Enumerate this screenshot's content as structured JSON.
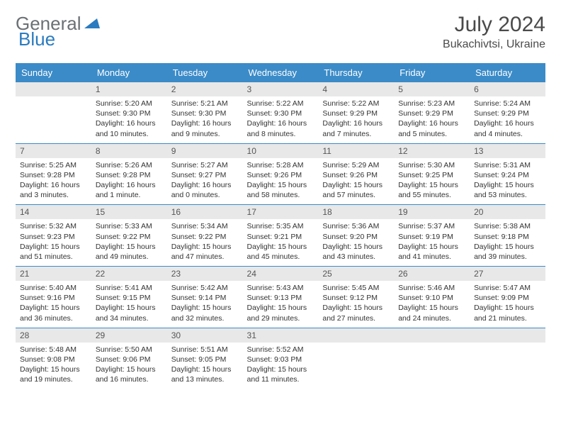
{
  "brand": {
    "part1": "General",
    "part2": "Blue"
  },
  "title": "July 2024",
  "location": "Bukachivtsi, Ukraine",
  "colors": {
    "header_bg": "#3b8bc8",
    "header_text": "#ffffff",
    "daynum_bg": "#e8e8e8",
    "border": "#3b8bc8",
    "text": "#333333",
    "logo_gray": "#6b7074",
    "logo_blue": "#2a7bbf"
  },
  "day_headers": [
    "Sunday",
    "Monday",
    "Tuesday",
    "Wednesday",
    "Thursday",
    "Friday",
    "Saturday"
  ],
  "weeks": [
    [
      {
        "num": "",
        "lines": []
      },
      {
        "num": "1",
        "lines": [
          "Sunrise: 5:20 AM",
          "Sunset: 9:30 PM",
          "Daylight: 16 hours",
          "and 10 minutes."
        ]
      },
      {
        "num": "2",
        "lines": [
          "Sunrise: 5:21 AM",
          "Sunset: 9:30 PM",
          "Daylight: 16 hours",
          "and 9 minutes."
        ]
      },
      {
        "num": "3",
        "lines": [
          "Sunrise: 5:22 AM",
          "Sunset: 9:30 PM",
          "Daylight: 16 hours",
          "and 8 minutes."
        ]
      },
      {
        "num": "4",
        "lines": [
          "Sunrise: 5:22 AM",
          "Sunset: 9:29 PM",
          "Daylight: 16 hours",
          "and 7 minutes."
        ]
      },
      {
        "num": "5",
        "lines": [
          "Sunrise: 5:23 AM",
          "Sunset: 9:29 PM",
          "Daylight: 16 hours",
          "and 5 minutes."
        ]
      },
      {
        "num": "6",
        "lines": [
          "Sunrise: 5:24 AM",
          "Sunset: 9:29 PM",
          "Daylight: 16 hours",
          "and 4 minutes."
        ]
      }
    ],
    [
      {
        "num": "7",
        "lines": [
          "Sunrise: 5:25 AM",
          "Sunset: 9:28 PM",
          "Daylight: 16 hours",
          "and 3 minutes."
        ]
      },
      {
        "num": "8",
        "lines": [
          "Sunrise: 5:26 AM",
          "Sunset: 9:28 PM",
          "Daylight: 16 hours",
          "and 1 minute."
        ]
      },
      {
        "num": "9",
        "lines": [
          "Sunrise: 5:27 AM",
          "Sunset: 9:27 PM",
          "Daylight: 16 hours",
          "and 0 minutes."
        ]
      },
      {
        "num": "10",
        "lines": [
          "Sunrise: 5:28 AM",
          "Sunset: 9:26 PM",
          "Daylight: 15 hours",
          "and 58 minutes."
        ]
      },
      {
        "num": "11",
        "lines": [
          "Sunrise: 5:29 AM",
          "Sunset: 9:26 PM",
          "Daylight: 15 hours",
          "and 57 minutes."
        ]
      },
      {
        "num": "12",
        "lines": [
          "Sunrise: 5:30 AM",
          "Sunset: 9:25 PM",
          "Daylight: 15 hours",
          "and 55 minutes."
        ]
      },
      {
        "num": "13",
        "lines": [
          "Sunrise: 5:31 AM",
          "Sunset: 9:24 PM",
          "Daylight: 15 hours",
          "and 53 minutes."
        ]
      }
    ],
    [
      {
        "num": "14",
        "lines": [
          "Sunrise: 5:32 AM",
          "Sunset: 9:23 PM",
          "Daylight: 15 hours",
          "and 51 minutes."
        ]
      },
      {
        "num": "15",
        "lines": [
          "Sunrise: 5:33 AM",
          "Sunset: 9:22 PM",
          "Daylight: 15 hours",
          "and 49 minutes."
        ]
      },
      {
        "num": "16",
        "lines": [
          "Sunrise: 5:34 AM",
          "Sunset: 9:22 PM",
          "Daylight: 15 hours",
          "and 47 minutes."
        ]
      },
      {
        "num": "17",
        "lines": [
          "Sunrise: 5:35 AM",
          "Sunset: 9:21 PM",
          "Daylight: 15 hours",
          "and 45 minutes."
        ]
      },
      {
        "num": "18",
        "lines": [
          "Sunrise: 5:36 AM",
          "Sunset: 9:20 PM",
          "Daylight: 15 hours",
          "and 43 minutes."
        ]
      },
      {
        "num": "19",
        "lines": [
          "Sunrise: 5:37 AM",
          "Sunset: 9:19 PM",
          "Daylight: 15 hours",
          "and 41 minutes."
        ]
      },
      {
        "num": "20",
        "lines": [
          "Sunrise: 5:38 AM",
          "Sunset: 9:18 PM",
          "Daylight: 15 hours",
          "and 39 minutes."
        ]
      }
    ],
    [
      {
        "num": "21",
        "lines": [
          "Sunrise: 5:40 AM",
          "Sunset: 9:16 PM",
          "Daylight: 15 hours",
          "and 36 minutes."
        ]
      },
      {
        "num": "22",
        "lines": [
          "Sunrise: 5:41 AM",
          "Sunset: 9:15 PM",
          "Daylight: 15 hours",
          "and 34 minutes."
        ]
      },
      {
        "num": "23",
        "lines": [
          "Sunrise: 5:42 AM",
          "Sunset: 9:14 PM",
          "Daylight: 15 hours",
          "and 32 minutes."
        ]
      },
      {
        "num": "24",
        "lines": [
          "Sunrise: 5:43 AM",
          "Sunset: 9:13 PM",
          "Daylight: 15 hours",
          "and 29 minutes."
        ]
      },
      {
        "num": "25",
        "lines": [
          "Sunrise: 5:45 AM",
          "Sunset: 9:12 PM",
          "Daylight: 15 hours",
          "and 27 minutes."
        ]
      },
      {
        "num": "26",
        "lines": [
          "Sunrise: 5:46 AM",
          "Sunset: 9:10 PM",
          "Daylight: 15 hours",
          "and 24 minutes."
        ]
      },
      {
        "num": "27",
        "lines": [
          "Sunrise: 5:47 AM",
          "Sunset: 9:09 PM",
          "Daylight: 15 hours",
          "and 21 minutes."
        ]
      }
    ],
    [
      {
        "num": "28",
        "lines": [
          "Sunrise: 5:48 AM",
          "Sunset: 9:08 PM",
          "Daylight: 15 hours",
          "and 19 minutes."
        ]
      },
      {
        "num": "29",
        "lines": [
          "Sunrise: 5:50 AM",
          "Sunset: 9:06 PM",
          "Daylight: 15 hours",
          "and 16 minutes."
        ]
      },
      {
        "num": "30",
        "lines": [
          "Sunrise: 5:51 AM",
          "Sunset: 9:05 PM",
          "Daylight: 15 hours",
          "and 13 minutes."
        ]
      },
      {
        "num": "31",
        "lines": [
          "Sunrise: 5:52 AM",
          "Sunset: 9:03 PM",
          "Daylight: 15 hours",
          "and 11 minutes."
        ]
      },
      {
        "num": "",
        "lines": []
      },
      {
        "num": "",
        "lines": []
      },
      {
        "num": "",
        "lines": []
      }
    ]
  ]
}
